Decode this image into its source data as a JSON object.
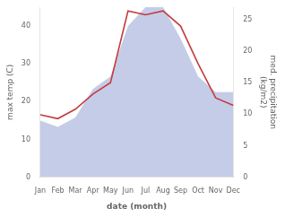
{
  "chart_data": {
    "type": "line",
    "categories": [
      "Jan",
      "Feb",
      "Mar",
      "Apr",
      "May",
      "Jun",
      "Jul",
      "Aug",
      "Sep",
      "Oct",
      "Nov",
      "Dec"
    ],
    "series": [
      {
        "type": "line",
        "color": "#c43c3c",
        "values": [
          16.5,
          15.5,
          18.0,
          22.0,
          25.0,
          44.0,
          43.0,
          44.0,
          40.0,
          30.0,
          21.0,
          19.0
        ]
      },
      {
        "type": "area",
        "color": "#c5cce8",
        "axis": "y2",
        "values": [
          9.0,
          8.0,
          9.5,
          14.0,
          16.0,
          24.0,
          27.0,
          27.0,
          22.0,
          16.0,
          13.5,
          13.5
        ]
      }
    ],
    "xlabel": "date (month)",
    "ylabel": "max temp (C)",
    "y2label": "med. precipitation\n(kg/m2)",
    "ylim": [
      0,
      45
    ],
    "yticks": [
      0,
      10,
      20,
      30,
      40
    ],
    "y2lim": [
      0,
      27
    ],
    "y2ticks": [
      0,
      5,
      10,
      15,
      20,
      25
    ],
    "grid": false
  }
}
